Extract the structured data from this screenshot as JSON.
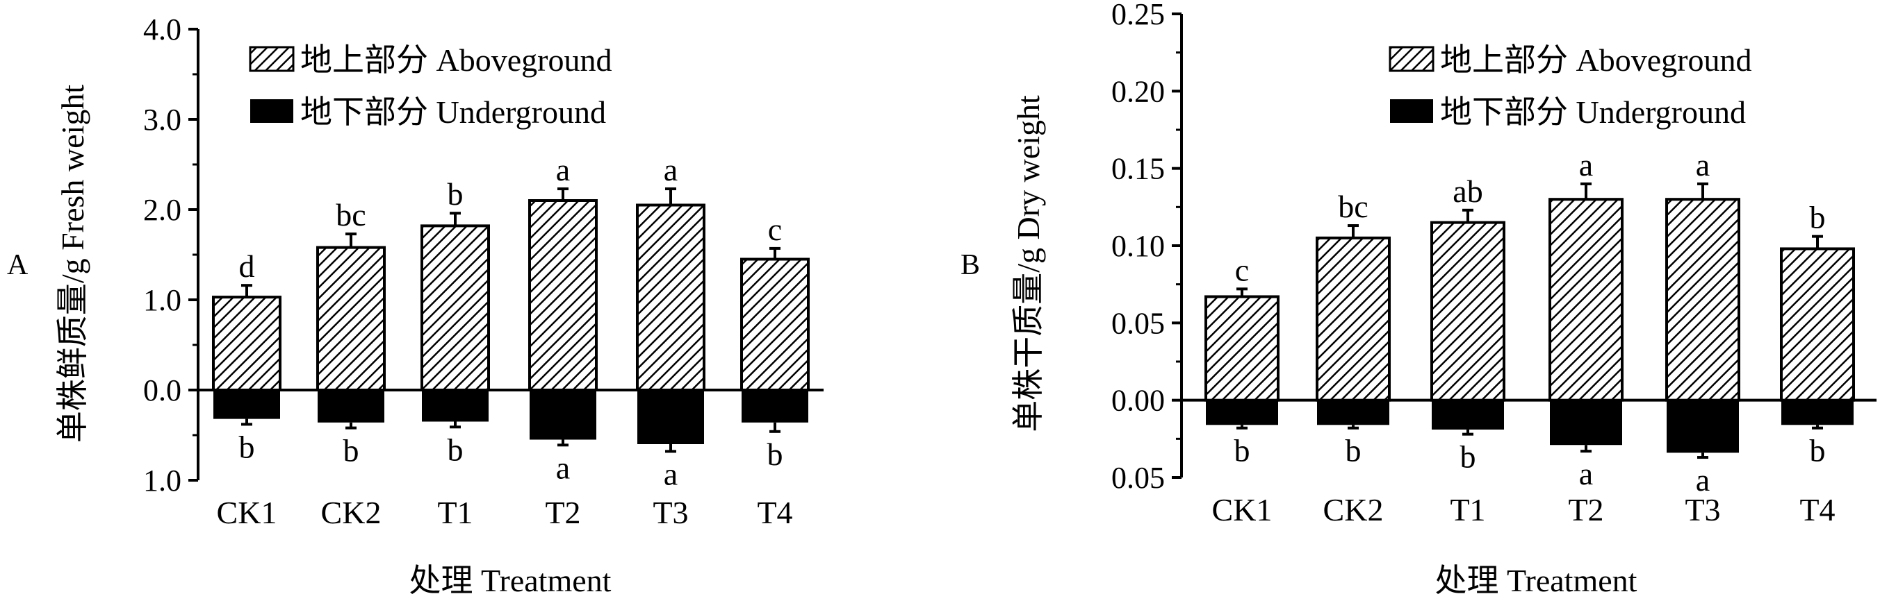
{
  "chart_data": [
    {
      "type": "bar",
      "panel_label": "A",
      "ylabel": "单株鲜质量/g  Fresh weight",
      "xlabel": "处理 Treatment",
      "ylim": [
        -1.0,
        4.0
      ],
      "y_ticks": [
        -1.0,
        0.0,
        1.0,
        2.0,
        3.0,
        4.0
      ],
      "y_tick_labels": [
        "1.0",
        "0.0",
        "1.0",
        "2.0",
        "3.0",
        "4.0"
      ],
      "categories": [
        "CK1",
        "CK2",
        "T1",
        "T2",
        "T3",
        "T4"
      ],
      "legend": {
        "position": "top-left",
        "entries": [
          "地上部分 Aboveground",
          "地下部分 Underground"
        ]
      },
      "series": [
        {
          "name": "地上部分 Aboveground",
          "pattern": "hatched",
          "values": [
            1.03,
            1.58,
            1.82,
            2.1,
            2.05,
            1.45
          ],
          "errors": [
            0.13,
            0.15,
            0.14,
            0.13,
            0.18,
            0.12
          ],
          "letters": [
            "d",
            "bc",
            "b",
            "a",
            "a",
            "c"
          ]
        },
        {
          "name": "地下部分 Underground",
          "pattern": "solid",
          "values": [
            -0.32,
            -0.36,
            -0.35,
            -0.55,
            -0.6,
            -0.36
          ],
          "errors": [
            0.06,
            0.06,
            0.06,
            0.06,
            0.08,
            0.1
          ],
          "letters": [
            "b",
            "b",
            "b",
            "a",
            "a",
            "b"
          ]
        }
      ]
    },
    {
      "type": "bar",
      "panel_label": "B",
      "ylabel": "单株干质量/g  Dry weight",
      "xlabel": "处理 Treatment",
      "ylim": [
        -0.05,
        0.25
      ],
      "y_ticks": [
        -0.05,
        0.0,
        0.05,
        0.1,
        0.15,
        0.2,
        0.25
      ],
      "y_tick_labels": [
        "0.05",
        "0.00",
        "0.05",
        "0.10",
        "0.15",
        "0.20",
        "0.25"
      ],
      "categories": [
        "CK1",
        "CK2",
        "T1",
        "T2",
        "T3",
        "T4"
      ],
      "legend": {
        "position": "top-right",
        "entries": [
          "地上部分 Aboveground",
          "地下部分 Underground"
        ]
      },
      "series": [
        {
          "name": "地上部分 Aboveground",
          "pattern": "hatched",
          "values": [
            0.067,
            0.105,
            0.115,
            0.13,
            0.13,
            0.098
          ],
          "errors": [
            0.005,
            0.008,
            0.008,
            0.01,
            0.01,
            0.008
          ],
          "letters": [
            "c",
            "bc",
            "ab",
            "a",
            "a",
            "b"
          ]
        },
        {
          "name": "地下部分 Underground",
          "pattern": "solid",
          "values": [
            -0.016,
            -0.016,
            -0.019,
            -0.029,
            -0.034,
            -0.016
          ],
          "errors": [
            0.002,
            0.002,
            0.003,
            0.004,
            0.003,
            0.002
          ],
          "letters": [
            "b",
            "b",
            "b",
            "a",
            "a",
            "b"
          ]
        }
      ]
    }
  ]
}
